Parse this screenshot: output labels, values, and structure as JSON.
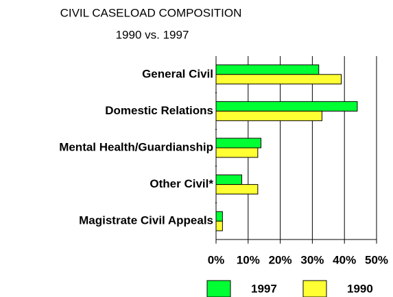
{
  "chart_data": {
    "type": "hbar",
    "title": "CIVIL CASELOAD COMPOSITION",
    "subtitle": "1990 vs. 1997",
    "categories": [
      "General Civil",
      "Domestic Relations",
      "Mental Health/Guardianship",
      "Other Civil*",
      "Magistrate Civil Appeals"
    ],
    "series": [
      {
        "name": "1997",
        "color": "#00ff33",
        "values": [
          32,
          44,
          14,
          8,
          2
        ]
      },
      {
        "name": "1990",
        "color": "#ffff33",
        "values": [
          39,
          33,
          13,
          13,
          2
        ]
      }
    ],
    "xlim": [
      0,
      50
    ],
    "xticks": [
      {
        "value": 0,
        "label": "0%"
      },
      {
        "value": 10,
        "label": "10%"
      },
      {
        "value": 20,
        "label": "20%"
      },
      {
        "value": 30,
        "label": "30%"
      },
      {
        "value": 40,
        "label": "40%"
      },
      {
        "value": 50,
        "label": "50%"
      }
    ],
    "grid": true,
    "legend": "bottom"
  }
}
